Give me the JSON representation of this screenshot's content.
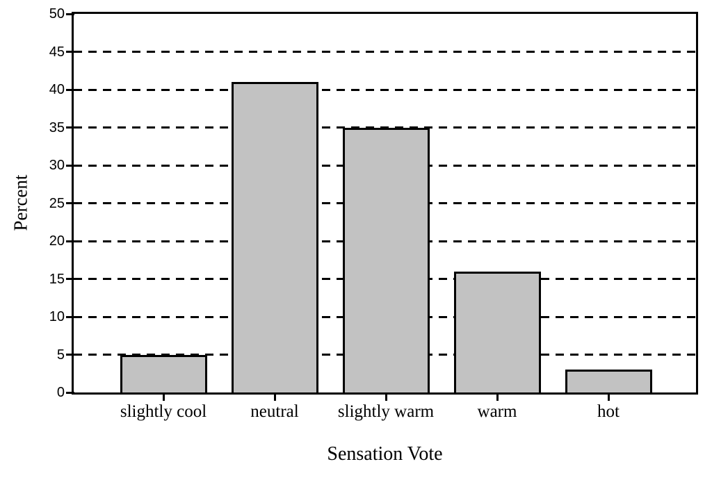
{
  "chart_data": {
    "type": "bar",
    "title": "",
    "xlabel": "Sensation Vote",
    "ylabel": "Percent",
    "categories": [
      "slightly cool",
      "neutral",
      "slightly warm",
      "warm",
      "hot"
    ],
    "values": [
      5,
      41,
      35,
      16,
      3
    ],
    "ylim": [
      0,
      50
    ],
    "ytick_step": 5,
    "yticks": [
      0,
      5,
      10,
      15,
      20,
      25,
      30,
      35,
      40,
      45,
      50
    ],
    "gridlines_at": [
      5,
      10,
      15,
      20,
      25,
      30,
      35,
      40,
      45
    ],
    "grid_style": "dashed",
    "grid_color": "#000000",
    "bar_fill": "#c2c2c2",
    "bar_border": "#000000",
    "frame_color": "#000000",
    "background": "#ffffff",
    "legend": null
  }
}
